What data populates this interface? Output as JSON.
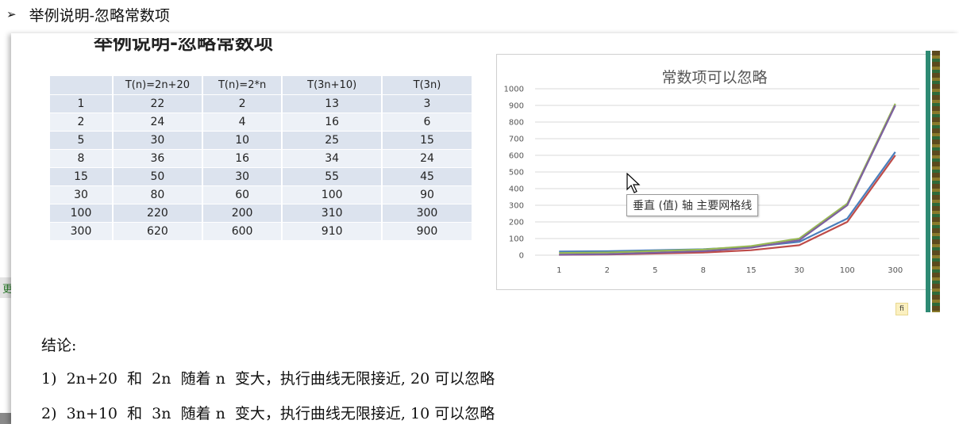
{
  "heading": {
    "bullet": "➢",
    "text": "举例说明-忽略常数项"
  },
  "cut_heading": "举例说明-忽略常数项",
  "side_fragment": "更",
  "corner_icon": "fi",
  "table": {
    "headers": [
      "",
      "T(n)=2n+20",
      "T(n)=2*n",
      "T(3n+10)",
      "T(3n)"
    ],
    "rows": [
      [
        "1",
        "22",
        "2",
        "13",
        "3"
      ],
      [
        "2",
        "24",
        "4",
        "16",
        "6"
      ],
      [
        "5",
        "30",
        "10",
        "25",
        "15"
      ],
      [
        "8",
        "36",
        "16",
        "34",
        "24"
      ],
      [
        "15",
        "50",
        "30",
        "55",
        "45"
      ],
      [
        "30",
        "80",
        "60",
        "100",
        "90"
      ],
      [
        "100",
        "220",
        "200",
        "310",
        "300"
      ],
      [
        "300",
        "620",
        "600",
        "910",
        "900"
      ]
    ]
  },
  "chart_data": {
    "type": "line",
    "title": "常数项可以忽略",
    "categories": [
      "1",
      "2",
      "5",
      "8",
      "15",
      "30",
      "100",
      "300"
    ],
    "series": [
      {
        "values": [
          22,
          24,
          30,
          36,
          50,
          80,
          220,
          620
        ],
        "color": "#4a7ebb"
      },
      {
        "values": [
          2,
          4,
          10,
          16,
          30,
          60,
          200,
          600
        ],
        "color": "#be4b48"
      },
      {
        "values": [
          13,
          16,
          25,
          34,
          55,
          100,
          310,
          910
        ],
        "color": "#98b954"
      },
      {
        "values": [
          3,
          6,
          15,
          24,
          45,
          90,
          300,
          900
        ],
        "color": "#7d60a0"
      }
    ],
    "ylim": [
      0,
      1000
    ],
    "yticks": [
      "0",
      "100",
      "200",
      "300",
      "400",
      "500",
      "600",
      "700",
      "800",
      "900",
      "1000"
    ],
    "grid": true,
    "legend": "none"
  },
  "tooltip": "垂直 (值) 轴 主要网格线",
  "conclusion": {
    "title": "结论:",
    "line1": "1)  2n+20  和  2n  随着 n  变大，执行曲线无限接近, 20 可以忽略",
    "line2": "2)  3n+10  和  3n  随着 n  变大，执行曲线无限接近, 10 可以忽略"
  }
}
